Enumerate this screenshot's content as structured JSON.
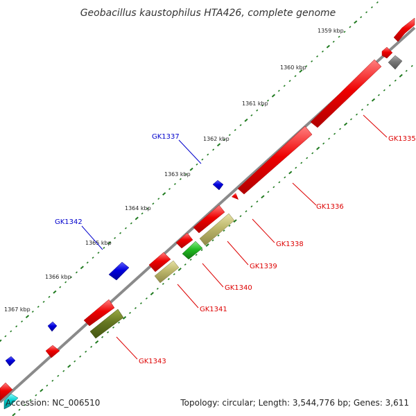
{
  "title": "Geobacillus kaustophilus HTA426, complete genome",
  "footer": {
    "accession": "Accession: NC_006510",
    "topology": "Topology: circular; Length: 3,544,776 bp; Genes: 3,611"
  },
  "colors": {
    "backbone": "#8a8a8a",
    "tick": "#1f7a1f",
    "red": "#ee0000",
    "blue": "#0000dd",
    "khaki": "#bdb76b",
    "green": "#22bb22",
    "olive": "#667722",
    "gray": "#777777",
    "cyan": "#00cccc"
  },
  "kbp_markers": [
    {
      "label": "1359 kbp"
    },
    {
      "label": "1360 kbp"
    },
    {
      "label": "1361 kbp"
    },
    {
      "label": "1362 kbp"
    },
    {
      "label": "1363 kbp"
    },
    {
      "label": "1364 kbp"
    },
    {
      "label": "1365 kbp"
    },
    {
      "label": "1366 kbp"
    },
    {
      "label": "1367 kbp"
    }
  ],
  "gene_labels": [
    {
      "id": "GK1335",
      "color": "#dd0000"
    },
    {
      "id": "GK1336",
      "color": "#dd0000"
    },
    {
      "id": "GK1338",
      "color": "#dd0000"
    },
    {
      "id": "GK1339",
      "color": "#dd0000"
    },
    {
      "id": "GK1340",
      "color": "#dd0000"
    },
    {
      "id": "GK1341",
      "color": "#dd0000"
    },
    {
      "id": "GK1343",
      "color": "#dd0000"
    },
    {
      "id": "GK1337",
      "color": "#0000cc"
    },
    {
      "id": "GK1342",
      "color": "#0000cc"
    }
  ]
}
